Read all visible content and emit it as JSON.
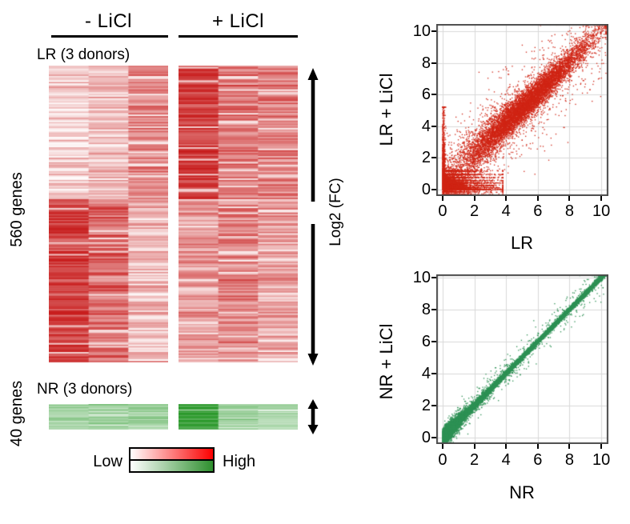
{
  "heatmap_panel": {
    "condition_headers": [
      {
        "label": "- LiCl"
      },
      {
        "label": "+ LiCl"
      }
    ],
    "lr_section_label": "LR (3 donors)",
    "nr_section_label": "NR (3 donors)",
    "lr_row_count_label": "560 genes",
    "nr_row_count_label": "40 genes",
    "fc_arrow_label": "Log2 (FC)",
    "legend": {
      "low_label": "Low",
      "high_label": "High",
      "red_scale": [
        "#ffffff",
        "#fb0000"
      ],
      "green_scale": [
        "#ffffff",
        "#2e8f2e"
      ]
    }
  },
  "chart_data": [
    {
      "type": "heatmap",
      "id": "lr_heatmap",
      "title": "LR (3 donors)",
      "rows": 560,
      "row_units": "genes",
      "conditions": [
        "- LiCl",
        "+ LiCl"
      ],
      "donors_per_condition": 3,
      "colorscale": {
        "low": "#ffffff",
        "high": "#c81e1e"
      },
      "row_blocks": [
        {
          "fraction": 0.45,
          "minus_LiCl_intensity": [
            0.22,
            0.33,
            0.55
          ],
          "plus_LiCl_intensity": [
            0.88,
            0.62,
            0.58
          ]
        },
        {
          "fraction": 0.55,
          "minus_LiCl_intensity": [
            0.87,
            0.66,
            0.3
          ],
          "plus_LiCl_intensity": [
            0.46,
            0.54,
            0.42
          ]
        }
      ],
      "noise": 0.21
    },
    {
      "type": "heatmap",
      "id": "nr_heatmap",
      "title": "NR (3 donors)",
      "rows": 40,
      "row_units": "genes",
      "conditions": [
        "- LiCl",
        "+ LiCl"
      ],
      "donors_per_condition": 3,
      "colorscale": {
        "low": "#ffffff",
        "high": "#189018"
      },
      "row_blocks": [
        {
          "fraction": 1.0,
          "minus_LiCl_intensity": [
            0.4,
            0.46,
            0.42
          ],
          "plus_LiCl_intensity": [
            0.88,
            0.48,
            0.41
          ]
        }
      ],
      "noise": 0.15
    },
    {
      "type": "scatter",
      "id": "lr_scatter",
      "xlabel": "LR",
      "ylabel": "LR + LiCl",
      "xticks": [
        0,
        2,
        4,
        6,
        8,
        10
      ],
      "yticks": [
        0,
        2,
        4,
        6,
        8,
        10
      ],
      "xlim": [
        -0.4,
        10.45
      ],
      "ylim": [
        -0.4,
        10.45
      ],
      "grid": true,
      "point_color": "#d02515",
      "n_points": 16000,
      "diagonal_sd": 0.5,
      "low_expression_bands": [
        -0.3,
        -0.15,
        0,
        0.13,
        0.27,
        0.42,
        0.58,
        0.76,
        0.96,
        1.18
      ]
    },
    {
      "type": "scatter",
      "id": "nr_scatter",
      "xlabel": "NR",
      "ylabel": "NR + LiCl",
      "xticks": [
        0,
        2,
        4,
        6,
        8,
        10
      ],
      "yticks": [
        0,
        2,
        4,
        6,
        8,
        10
      ],
      "xlim": [
        -0.4,
        10.45
      ],
      "ylim": [
        -0.4,
        10.2
      ],
      "grid": true,
      "point_color": "#2e9155",
      "n_points": 16000,
      "diagonal_sd": 0.12
    }
  ]
}
